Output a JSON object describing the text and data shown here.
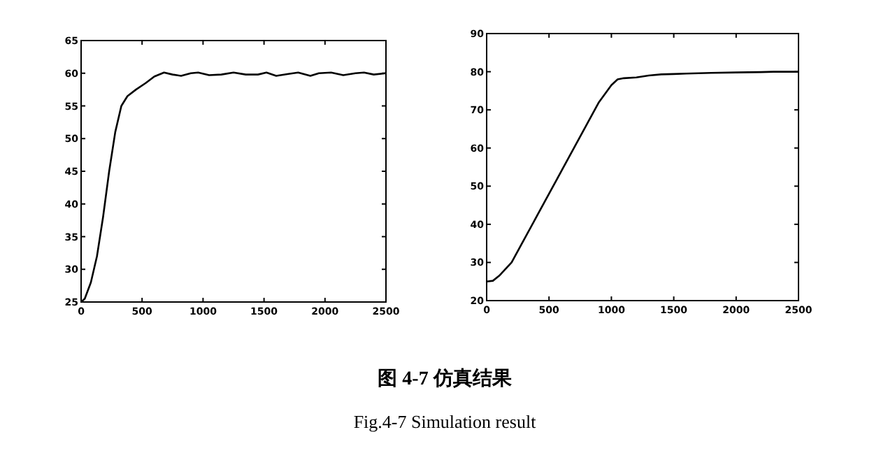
{
  "chart_data": [
    {
      "type": "line",
      "color": "#000000",
      "x": [
        0,
        30,
        80,
        130,
        180,
        230,
        280,
        330,
        380,
        450,
        530,
        600,
        680,
        750,
        820,
        900,
        960,
        1050,
        1150,
        1250,
        1350,
        1450,
        1520,
        1600,
        1700,
        1780,
        1880,
        1950,
        2050,
        2150,
        2250,
        2320,
        2400,
        2500
      ],
      "values": [
        25,
        25.5,
        28,
        32,
        38,
        45,
        51,
        55,
        56.5,
        57.5,
        58.5,
        59.5,
        60.1,
        59.8,
        59.6,
        60,
        60.1,
        59.7,
        59.8,
        60.1,
        59.8,
        59.8,
        60.1,
        59.6,
        59.9,
        60.1,
        59.6,
        60,
        60.1,
        59.7,
        60,
        60.1,
        59.8,
        60
      ],
      "xlim": [
        0,
        2500
      ],
      "xticks": [
        0,
        500,
        1000,
        1500,
        2000,
        2500
      ],
      "ylim": [
        25,
        65
      ],
      "yticks": [
        25,
        30,
        35,
        40,
        45,
        50,
        55,
        60,
        65
      ]
    },
    {
      "type": "line",
      "color": "#000000",
      "x": [
        0,
        50,
        100,
        200,
        300,
        400,
        500,
        600,
        700,
        800,
        900,
        1000,
        1050,
        1100,
        1200,
        1300,
        1400,
        1500,
        1600,
        1700,
        1800,
        2000,
        2200,
        2300,
        2500
      ],
      "values": [
        25,
        25.2,
        26.5,
        30,
        36,
        42,
        48,
        54,
        60,
        66,
        72,
        76.5,
        78,
        78.3,
        78.5,
        79,
        79.3,
        79.4,
        79.5,
        79.6,
        79.7,
        79.8,
        79.9,
        80,
        80
      ],
      "xlim": [
        0,
        2500
      ],
      "xticks": [
        0,
        500,
        1000,
        1500,
        2000,
        2500
      ],
      "ylim": [
        20,
        90
      ],
      "yticks": [
        20,
        30,
        40,
        50,
        60,
        70,
        80,
        90
      ]
    },
    {
      "type": "other",
      "annotations": [
        "图 4-7  仿真结果",
        "Fig.4-7 Simulation result"
      ]
    }
  ]
}
